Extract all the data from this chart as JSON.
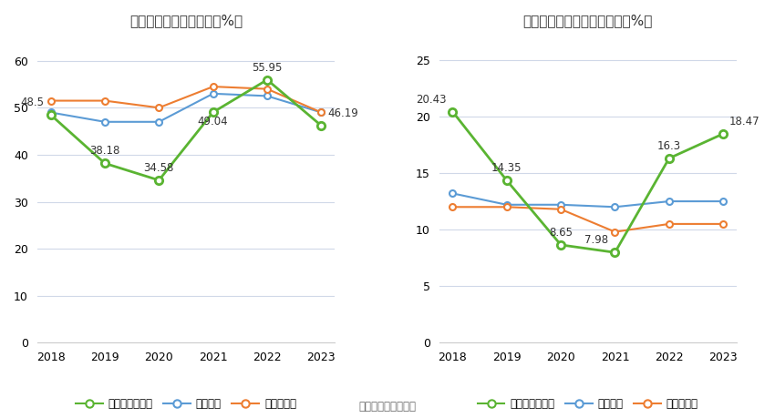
{
  "years": [
    2018,
    2019,
    2020,
    2021,
    2022,
    2023
  ],
  "chart1": {
    "title": "近年来资产负债率情况（%）",
    "green": [
      48.5,
      38.18,
      34.58,
      49.04,
      55.95,
      46.19
    ],
    "blue": [
      49.0,
      47.0,
      47.0,
      53.0,
      52.5,
      49.0
    ],
    "orange": [
      51.5,
      51.5,
      50.0,
      54.5,
      54.0,
      49.0
    ],
    "green_label": "公司资产负债率",
    "blue_label": "行业均值",
    "orange_label": "行业中位数",
    "ylim": [
      0,
      65
    ],
    "yticks": [
      0,
      10,
      20,
      30,
      40,
      50,
      60
    ],
    "annot_offsets": [
      [
        -5,
        5,
        "right"
      ],
      [
        0,
        5,
        "center"
      ],
      [
        0,
        5,
        "center"
      ],
      [
        0,
        -12,
        "center"
      ],
      [
        0,
        5,
        "center"
      ],
      [
        5,
        5,
        "left"
      ]
    ]
  },
  "chart2": {
    "title": "近年来有息资产负债率情况（%）",
    "green": [
      20.43,
      14.35,
      8.65,
      7.98,
      16.3,
      18.47
    ],
    "blue": [
      13.2,
      12.2,
      12.2,
      12.0,
      12.5,
      12.5
    ],
    "orange": [
      12.0,
      12.0,
      11.8,
      9.8,
      10.5,
      10.5
    ],
    "green_label": "有息资产负债率",
    "blue_label": "行业均值",
    "orange_label": "行业中位数",
    "ylim": [
      0,
      27
    ],
    "yticks": [
      0,
      5,
      10,
      15,
      20,
      25
    ],
    "annot_offsets": [
      [
        -5,
        5,
        "right"
      ],
      [
        0,
        5,
        "center"
      ],
      [
        0,
        5,
        "center"
      ],
      [
        -5,
        5,
        "right"
      ],
      [
        0,
        5,
        "center"
      ],
      [
        5,
        5,
        "left"
      ]
    ]
  },
  "green_color": "#5ab432",
  "blue_color": "#5b9bd5",
  "orange_color": "#ed7d31",
  "source_text": "数据来源：恒生聚源",
  "bg_color": "#ffffff",
  "grid_color": "#d0d8e8"
}
